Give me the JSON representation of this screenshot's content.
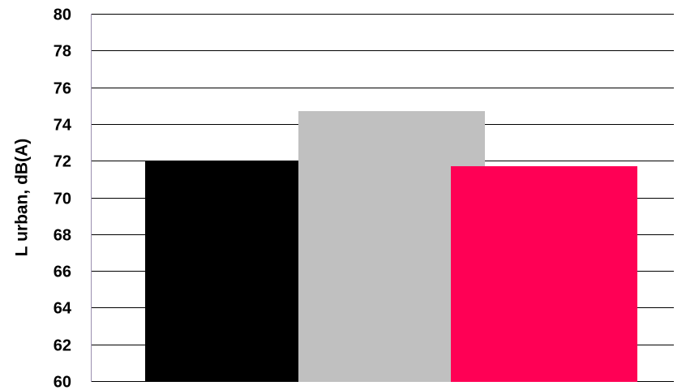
{
  "chart_data": {
    "type": "bar",
    "title": "",
    "xlabel": "",
    "ylabel": "L urban, dB(A)",
    "ylim": [
      60,
      80
    ],
    "yticks": [
      60,
      62,
      64,
      66,
      68,
      70,
      72,
      74,
      76,
      78,
      80
    ],
    "grid": true,
    "legend": "none",
    "categories": [
      "",
      "",
      ""
    ],
    "values": [
      72.0,
      74.7,
      71.7
    ],
    "colors": [
      "#000000",
      "#c0c0c0",
      "#ff0055"
    ]
  }
}
